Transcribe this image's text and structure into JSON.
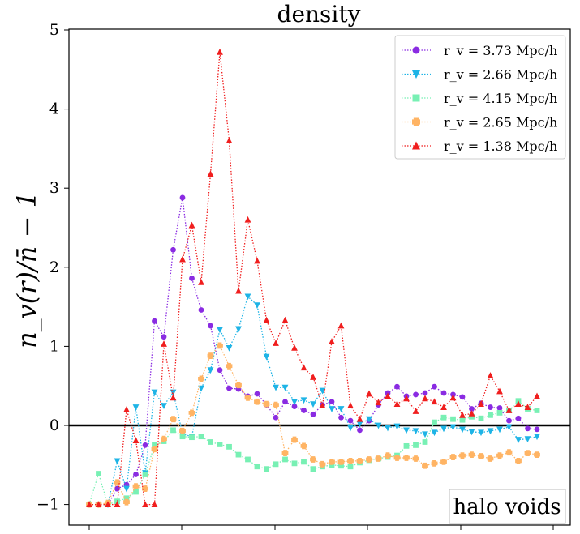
{
  "chart_data": {
    "type": "line",
    "title": "density",
    "ylabel": "n_v(r)/n̄ − 1",
    "xlabel": "",
    "ylim": [
      -1.1,
      5.05
    ],
    "xlim": [
      0,
      52
    ],
    "yticks": [
      -1,
      0,
      1,
      2,
      3,
      4,
      5
    ],
    "annotation": "halo voids",
    "legend_position": "top-right",
    "reference_line": 0,
    "series": [
      {
        "name": "r_v = 3.73 Mpc/h",
        "color": "#8a2be2",
        "marker": "circle",
        "values": [
          -1,
          -1,
          -1,
          -0.8,
          -0.75,
          -0.62,
          -0.25,
          1.32,
          1.12,
          2.22,
          2.88,
          1.86,
          1.46,
          1.26,
          0.7,
          0.47,
          0.46,
          0.37,
          0.4,
          0.26,
          0.1,
          0.3,
          0.24,
          0.19,
          0.14,
          0.26,
          0.3,
          0.1,
          0.06,
          -0.06,
          0.06,
          0.26,
          0.41,
          0.49,
          0.37,
          0.39,
          0.41,
          0.49,
          0.41,
          0.39,
          0.36,
          0.21,
          0.28,
          0.23,
          0.22,
          0.06,
          0.09,
          -0.04,
          -0.05
        ]
      },
      {
        "name": "r_v = 2.66 Mpc/h",
        "color": "#1eb4e6",
        "marker": "triangle-down",
        "values": [
          -1,
          -1,
          -1,
          -0.45,
          -0.8,
          0.23,
          -0.6,
          0.42,
          0.25,
          0.42,
          -0.11,
          -0.14,
          0.47,
          0.7,
          1.21,
          0.98,
          1.22,
          1.63,
          1.52,
          0.87,
          0.48,
          0.48,
          0.3,
          0.32,
          0.27,
          0.44,
          0.21,
          0.21,
          -0.03,
          0.02,
          0.08,
          0,
          -0.03,
          -0.01,
          -0.06,
          -0.07,
          -0.11,
          -0.09,
          -0.04,
          -0.02,
          -0.05,
          -0.08,
          -0.09,
          -0.07,
          -0.05,
          -0.02,
          -0.18,
          -0.17,
          -0.14
        ]
      },
      {
        "name": "r_v = 4.15 Mpc/h",
        "color": "#78f0b4",
        "marker": "square",
        "values": [
          -1,
          -0.61,
          -1,
          -0.96,
          -0.92,
          -0.84,
          -0.62,
          -0.25,
          -0.2,
          -0.06,
          -0.14,
          -0.15,
          -0.14,
          -0.21,
          -0.24,
          -0.27,
          -0.37,
          -0.43,
          -0.52,
          -0.55,
          -0.49,
          -0.43,
          -0.48,
          -0.46,
          -0.55,
          -0.52,
          -0.5,
          -0.51,
          -0.52,
          -0.47,
          -0.44,
          -0.42,
          -0.4,
          -0.38,
          -0.26,
          -0.25,
          -0.21,
          0.04,
          0.1,
          0.08,
          0.07,
          0.11,
          0.09,
          0.13,
          0.16,
          0.19,
          0.31,
          0.21,
          0.19
        ]
      },
      {
        "name": "r_v = 2.65 Mpc/h",
        "color": "#ffb464",
        "marker": "plus",
        "values": [
          -1,
          -1,
          -0.98,
          -0.72,
          -0.97,
          -0.77,
          -0.8,
          -0.3,
          -0.17,
          0.08,
          -0.07,
          0.16,
          0.59,
          0.88,
          1.01,
          0.75,
          0.51,
          0.35,
          0.3,
          0.27,
          0.26,
          -0.35,
          -0.18,
          -0.26,
          -0.43,
          -0.49,
          -0.46,
          -0.46,
          -0.45,
          -0.45,
          -0.43,
          -0.42,
          -0.38,
          -0.41,
          -0.41,
          -0.42,
          -0.51,
          -0.48,
          -0.46,
          -0.4,
          -0.38,
          -0.37,
          -0.39,
          -0.42,
          -0.38,
          -0.34,
          -0.45,
          -0.35,
          -0.37
        ]
      },
      {
        "name": "r_v = 1.38 Mpc/h",
        "color": "#f01e1e",
        "marker": "triangle-up",
        "values": [
          -1,
          -1,
          -1,
          -1,
          0.2,
          -0.19,
          -1,
          -1,
          1.03,
          0.35,
          2.1,
          2.53,
          1.81,
          3.18,
          4.72,
          3.6,
          1.7,
          2.6,
          2.08,
          1.33,
          1.04,
          1.33,
          0.98,
          0.73,
          0.61,
          0.25,
          1.06,
          1.26,
          0.25,
          0.08,
          0.4,
          0.29,
          0.37,
          0.27,
          0.34,
          0.18,
          0.34,
          0.3,
          0.23,
          0.35,
          0.13,
          0.15,
          0.27,
          0.63,
          0.43,
          0.19,
          0.27,
          0.23,
          0.37
        ]
      }
    ]
  }
}
